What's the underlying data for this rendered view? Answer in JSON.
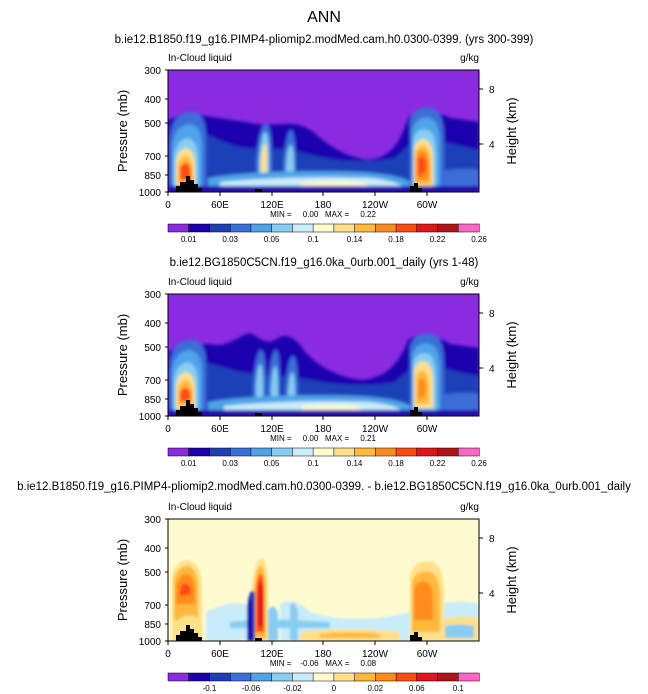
{
  "figure_title": "ANN",
  "panels": [
    {
      "title": "b.ie12.B1850.f19_g16.PIMP4-pliomip2.modMed.cam.h0.0300-0399. (yrs 300-399)",
      "field_label": "In-Cloud liquid",
      "units": "g/kg",
      "minmax": "MIN =     0.00   MAX =     0.22",
      "colorbar": {
        "colors": [
          "#8a2be2",
          "#1a00ad",
          "#1f3fb8",
          "#3a6ed8",
          "#4fa3e8",
          "#87cdf2",
          "#c9ecfa",
          "#fffbd0",
          "#ffe08a",
          "#ffb83a",
          "#ff8c1a",
          "#ff4a12",
          "#e0141a",
          "#b0141a",
          "#ff66c4"
        ],
        "labels": [
          "0.01",
          "0.03",
          "0.05",
          "0.1",
          "0.14",
          "0.18",
          "0.22",
          "0.26"
        ]
      }
    },
    {
      "title": "b.ie12.BG1850C5CN.f19_g16.0ka_0urb.001_daily (yrs 1-48)",
      "field_label": "In-Cloud liquid",
      "units": "g/kg",
      "minmax": "MIN =     0.00   MAX =     0.21",
      "colorbar": {
        "colors": [
          "#8a2be2",
          "#1a00ad",
          "#1f3fb8",
          "#3a6ed8",
          "#4fa3e8",
          "#87cdf2",
          "#c9ecfa",
          "#fffbd0",
          "#ffe08a",
          "#ffb83a",
          "#ff8c1a",
          "#ff4a12",
          "#e0141a",
          "#b0141a",
          "#ff66c4"
        ],
        "labels": [
          "0.01",
          "0.03",
          "0.05",
          "0.1",
          "0.14",
          "0.18",
          "0.22",
          "0.26"
        ]
      }
    },
    {
      "title": "b.ie12.B1850.f19_g16.PIMP4-pliomip2.modMed.cam.h0.0300-0399. - b.ie12.BG1850C5CN.f19_g16.0ka_0urb.001_daily",
      "field_label": "In-Cloud liquid",
      "units": "g/kg",
      "minmax": "MIN =    -0.06   MAX =     0.08",
      "colorbar": {
        "colors": [
          "#8a2be2",
          "#1a00ad",
          "#1f3fb8",
          "#3a6ed8",
          "#4fa3e8",
          "#87cdf2",
          "#c9ecfa",
          "#fffbd0",
          "#ffe08a",
          "#ffb83a",
          "#ff8c1a",
          "#ff4a12",
          "#e0141a",
          "#b0141a",
          "#ff66c4"
        ],
        "labels": [
          "-0.1",
          "-0.06",
          "-0.02",
          "0",
          "0.02",
          "0.06",
          "0.1"
        ]
      }
    }
  ],
  "axes": {
    "y_left_label": "Pressure (mb)",
    "y_right_label": "Height (km)",
    "y_ticks": [
      "300",
      "400",
      "500",
      "700",
      "850",
      "1000"
    ],
    "y_right_ticks": [
      "8",
      "4"
    ],
    "x_ticks": [
      "0",
      "60E",
      "120E",
      "180",
      "120W",
      "60W"
    ]
  },
  "chart_data": {
    "type": "heatmap",
    "description_of_axes": "longitude (x) vs pressure (y)",
    "xlabel": "",
    "ylabel": "Pressure (mb)",
    "y2label": "Height (km)",
    "ylim": [
      1000,
      300
    ],
    "y_scale": "log",
    "xlim": [
      0,
      360
    ],
    "panels": [
      {
        "min": 0.0,
        "max": 0.22
      },
      {
        "min": 0.0,
        "max": 0.21
      },
      {
        "min": -0.06,
        "max": 0.08
      }
    ]
  }
}
